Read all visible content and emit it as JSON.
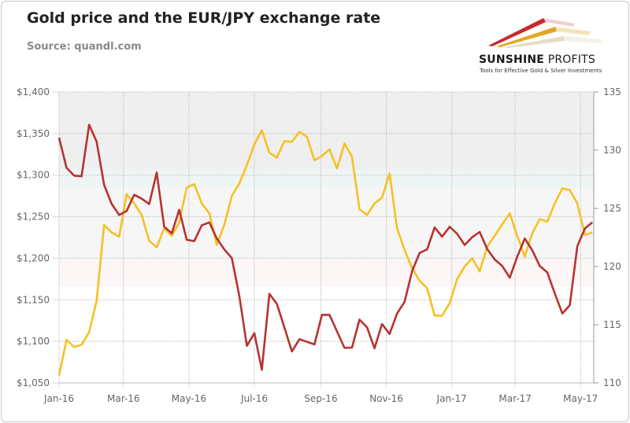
{
  "header": {
    "title": "Gold price and the EUR/JPY exchange rate",
    "subtitle": "Source: quandl.com"
  },
  "logo": {
    "name_bold": "SUNSHINE",
    "name_rest": " PROFITS",
    "tagline": "Tools for Effective Gold & Silver Investments"
  },
  "chart_data": {
    "type": "line",
    "title": "Gold price and the EUR/JPY exchange rate",
    "x_tick_labels": [
      "Jan-16",
      "Mar-16",
      "May-16",
      "Jul-16",
      "Sep-16",
      "Nov-16",
      "Jan-17",
      "Mar-17",
      "May-17"
    ],
    "x_tick_dates": [
      "2016-01-01",
      "2016-03-01",
      "2016-05-01",
      "2016-07-01",
      "2016-09-01",
      "2016-11-01",
      "2017-01-01",
      "2017-03-01",
      "2017-05-01"
    ],
    "x_range": [
      "2016-01-01",
      "2017-05-15"
    ],
    "y_left": {
      "range": [
        1050,
        1400
      ],
      "ticks": [
        1050,
        1100,
        1150,
        1200,
        1250,
        1300,
        1350,
        1400
      ],
      "tick_labels": [
        "$1,050",
        "$1,100",
        "$1,150",
        "$1,200",
        "$1,250",
        "$1,300",
        "$1,350",
        "$1,400"
      ]
    },
    "y_right": {
      "range": [
        110,
        135
      ],
      "ticks": [
        110,
        115,
        120,
        125,
        130,
        135
      ],
      "tick_labels": [
        "110",
        "115",
        "120",
        "125",
        "130",
        "135"
      ]
    },
    "grid": true,
    "background_bands": [
      {
        "from": 1307,
        "to": 1400,
        "color": "#efefef"
      },
      {
        "from": 1285,
        "to": 1307,
        "color": "#eef5f4"
      },
      {
        "from": 1199,
        "to": 1285,
        "color": "#f6f6f6"
      },
      {
        "from": 1166,
        "to": 1199,
        "color": "#fcf6f6"
      }
    ],
    "x": [
      "2016-01-01",
      "2016-01-08",
      "2016-01-15",
      "2016-01-22",
      "2016-01-29",
      "2016-02-05",
      "2016-02-12",
      "2016-02-19",
      "2016-02-26",
      "2016-03-04",
      "2016-03-11",
      "2016-03-18",
      "2016-03-25",
      "2016-04-01",
      "2016-04-08",
      "2016-04-15",
      "2016-04-22",
      "2016-04-29",
      "2016-05-06",
      "2016-05-13",
      "2016-05-20",
      "2016-05-27",
      "2016-06-03",
      "2016-06-10",
      "2016-06-17",
      "2016-06-24",
      "2016-07-01",
      "2016-07-08",
      "2016-07-15",
      "2016-07-22",
      "2016-07-29",
      "2016-08-05",
      "2016-08-12",
      "2016-08-19",
      "2016-08-26",
      "2016-09-02",
      "2016-09-09",
      "2016-09-16",
      "2016-09-23",
      "2016-09-30",
      "2016-10-07",
      "2016-10-14",
      "2016-10-21",
      "2016-10-28",
      "2016-11-04",
      "2016-11-11",
      "2016-11-18",
      "2016-11-25",
      "2016-12-02",
      "2016-12-09",
      "2016-12-16",
      "2016-12-23",
      "2016-12-30",
      "2017-01-06",
      "2017-01-13",
      "2017-01-20",
      "2017-01-27",
      "2017-02-03",
      "2017-02-10",
      "2017-02-17",
      "2017-02-24",
      "2017-03-03",
      "2017-03-10",
      "2017-03-17",
      "2017-03-24",
      "2017-03-31",
      "2017-04-07",
      "2017-04-14",
      "2017-04-21",
      "2017-04-28",
      "2017-05-05",
      "2017-05-12"
    ],
    "series": [
      {
        "axis": "left",
        "color": "#f5c124",
        "values": [
          1059,
          1102,
          1093,
          1096,
          1111,
          1149,
          1240,
          1231,
          1226,
          1277,
          1266,
          1252,
          1221,
          1213,
          1236,
          1227,
          1243,
          1285,
          1289,
          1266,
          1254,
          1216,
          1240,
          1275,
          1290,
          1312,
          1337,
          1354,
          1327,
          1321,
          1341,
          1340,
          1352,
          1346,
          1318,
          1323,
          1331,
          1308,
          1338,
          1322,
          1259,
          1252,
          1266,
          1273,
          1302,
          1236,
          1210,
          1188,
          1173,
          1164,
          1131,
          1131,
          1146,
          1175,
          1190,
          1200,
          1184,
          1214,
          1227,
          1241,
          1254,
          1227,
          1202,
          1230,
          1247,
          1244,
          1266,
          1284,
          1282,
          1266,
          1228,
          1231
        ]
      },
      {
        "axis": "right",
        "color": "#b83232",
        "values": [
          131.07,
          128.48,
          127.81,
          127.76,
          132.19,
          130.73,
          127.02,
          125.38,
          124.43,
          124.77,
          126.17,
          125.83,
          125.38,
          128.08,
          123.42,
          122.86,
          124.88,
          122.3,
          122.19,
          123.54,
          123.8,
          122.41,
          121.47,
          120.72,
          117.47,
          113.19,
          114.27,
          111.13,
          117.65,
          116.79,
          114.77,
          112.7,
          113.76,
          113.53,
          113.31,
          115.85,
          115.85,
          114.43,
          113.01,
          113.04,
          115.44,
          114.77,
          112.97,
          115.06,
          114.2,
          115.96,
          116.97,
          119.6,
          121.17,
          121.47,
          123.36,
          122.57,
          123.42,
          122.82,
          121.85,
          122.52,
          122.97,
          121.51,
          120.61,
          120.05,
          119.04,
          120.84,
          122.41,
          121.4,
          120.05,
          119.49,
          117.69,
          115.96,
          116.68,
          121.74,
          123.27,
          123.8
        ]
      }
    ]
  }
}
